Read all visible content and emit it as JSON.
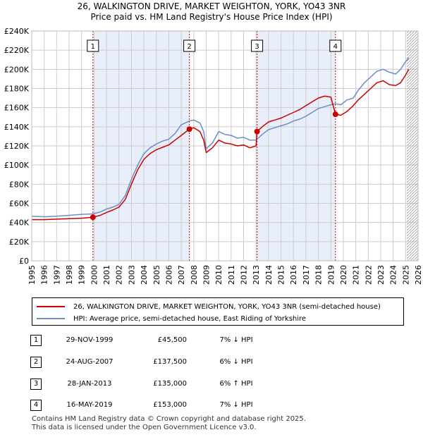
{
  "title_line1": "26, WALKINGTON DRIVE, MARKET WEIGHTON, YORK, YO43 3NR",
  "title_line2": "Price paid vs. HM Land Registry's House Price Index (HPI)",
  "colors": {
    "property": "#cc0000",
    "hpi": "#6a8fc8",
    "shade": "#e8eefa",
    "grid": "#cccccc",
    "marker_line": "#cc0000"
  },
  "legend": {
    "property": "26, WALKINGTON DRIVE, MARKET WEIGHTON, YORK, YO43 3NR (semi-detached house)",
    "hpi": "HPI: Average price, semi-detached house, East Riding of Yorkshire"
  },
  "transactions": [
    {
      "num": "1",
      "date": "29-NOV-1999",
      "price": "£45,500",
      "hpi": "7% ↓ HPI"
    },
    {
      "num": "2",
      "date": "24-AUG-2007",
      "price": "£137,500",
      "hpi": "6% ↓ HPI"
    },
    {
      "num": "3",
      "date": "28-JAN-2013",
      "price": "£135,000",
      "hpi": "6% ↑ HPI"
    },
    {
      "num": "4",
      "date": "16-MAY-2019",
      "price": "£153,000",
      "hpi": "7% ↓ HPI"
    }
  ],
  "footer": {
    "line1": "Contains HM Land Registry data © Crown copyright and database right 2025.",
    "line2": "This data is licensed under the Open Government Licence v3.0."
  },
  "chart_data": {
    "type": "line",
    "title": "Price paid vs. HM Land Registry's House Price Index (HPI)",
    "xlabel": "",
    "ylabel": "",
    "xlim": [
      1995,
      2026
    ],
    "ylim": [
      0,
      240000
    ],
    "x_ticks": [
      1995,
      1996,
      1997,
      1998,
      1999,
      2000,
      2001,
      2002,
      2003,
      2004,
      2005,
      2006,
      2007,
      2008,
      2009,
      2010,
      2011,
      2012,
      2013,
      2014,
      2015,
      2016,
      2017,
      2018,
      2019,
      2020,
      2021,
      2022,
      2023,
      2024,
      2025,
      2026
    ],
    "y_ticks": [
      0,
      20000,
      40000,
      60000,
      80000,
      100000,
      120000,
      140000,
      160000,
      180000,
      200000,
      220000,
      240000
    ],
    "y_tick_labels": [
      "£0",
      "£20K",
      "£40K",
      "£60K",
      "£80K",
      "£100K",
      "£120K",
      "£140K",
      "£160K",
      "£180K",
      "£200K",
      "£220K",
      "£240K"
    ],
    "hatched_from": 2025.1,
    "shaded_spans": [
      [
        1999.91,
        2007.65
      ],
      [
        2013.08,
        2019.37
      ]
    ],
    "sales": [
      {
        "label": "1",
        "x": 1999.91,
        "y": 45500
      },
      {
        "label": "2",
        "x": 2007.65,
        "y": 137500
      },
      {
        "label": "3",
        "x": 2013.08,
        "y": 135000
      },
      {
        "label": "4",
        "x": 2019.37,
        "y": 153000
      }
    ],
    "series": [
      {
        "name": "HPI: Average price, semi-detached house, East Riding of Yorkshire",
        "x": [
          1995,
          1996,
          1997,
          1998,
          1999,
          1999.91,
          2000.5,
          2001,
          2001.5,
          2002,
          2002.5,
          2003,
          2003.5,
          2004,
          2004.5,
          2005,
          2005.5,
          2006,
          2006.5,
          2007,
          2007.65,
          2008,
          2008.5,
          2008.8,
          2009,
          2009.5,
          2010,
          2010.5,
          2011,
          2011.5,
          2012,
          2012.5,
          2013,
          2013.08,
          2013.5,
          2014,
          2014.5,
          2015,
          2015.5,
          2016,
          2016.5,
          2017,
          2017.5,
          2018,
          2018.5,
          2019,
          2019.37,
          2019.8,
          2020.3,
          2020.8,
          2021.2,
          2021.7,
          2022.2,
          2022.7,
          2023.2,
          2023.7,
          2024.2,
          2024.6,
          2025.0,
          2025.25
        ],
        "values": [
          46500,
          46000,
          46500,
          47500,
          48500,
          49000,
          51000,
          54000,
          56000,
          59000,
          68000,
          85000,
          100000,
          112000,
          118000,
          122000,
          125000,
          127000,
          133000,
          142000,
          146000,
          147000,
          144000,
          135000,
          117000,
          123000,
          135000,
          132000,
          131000,
          128000,
          129000,
          126000,
          126000,
          127000,
          132000,
          137000,
          139000,
          141000,
          143000,
          146000,
          148000,
          151000,
          155000,
          159000,
          161000,
          163000,
          164000,
          163000,
          168000,
          170000,
          178000,
          186000,
          192000,
          198000,
          200000,
          197000,
          195000,
          200000,
          208000,
          212000
        ]
      },
      {
        "name": "26, WALKINGTON DRIVE, MARKET WEIGHTON, YORK, YO43 3NR (semi-detached house)",
        "x": [
          1995,
          1996,
          1997,
          1998,
          1999,
          1999.91,
          2000.5,
          2001,
          2001.5,
          2002,
          2002.5,
          2003,
          2003.5,
          2004,
          2004.5,
          2005,
          2005.5,
          2006,
          2006.5,
          2007,
          2007.65,
          2008,
          2008.5,
          2008.8,
          2009,
          2009.5,
          2010,
          2010.5,
          2011,
          2011.5,
          2012,
          2012.5,
          2013,
          2013.08,
          2013.5,
          2014,
          2014.5,
          2015,
          2015.5,
          2016,
          2016.5,
          2017,
          2017.5,
          2018,
          2018.5,
          2019,
          2019.37,
          2019.8,
          2020.3,
          2020.8,
          2021.2,
          2021.7,
          2022.2,
          2022.7,
          2023.2,
          2023.7,
          2024.2,
          2024.6,
          2025.0,
          2025.25
        ],
        "values": [
          43000,
          43000,
          43500,
          44000,
          44500,
          45500,
          47500,
          50500,
          53000,
          56000,
          64000,
          80000,
          95000,
          106000,
          112000,
          116000,
          118500,
          121000,
          126000,
          131000,
          137500,
          139000,
          135000,
          126000,
          113000,
          118000,
          126000,
          123000,
          122000,
          120000,
          121000,
          118000,
          120000,
          135000,
          140000,
          145000,
          147000,
          149000,
          152000,
          155000,
          158000,
          162000,
          166000,
          170000,
          172000,
          171000,
          153000,
          152000,
          156000,
          162000,
          168000,
          174000,
          180000,
          186000,
          188000,
          184000,
          183000,
          186000,
          194000,
          200000
        ]
      }
    ]
  }
}
